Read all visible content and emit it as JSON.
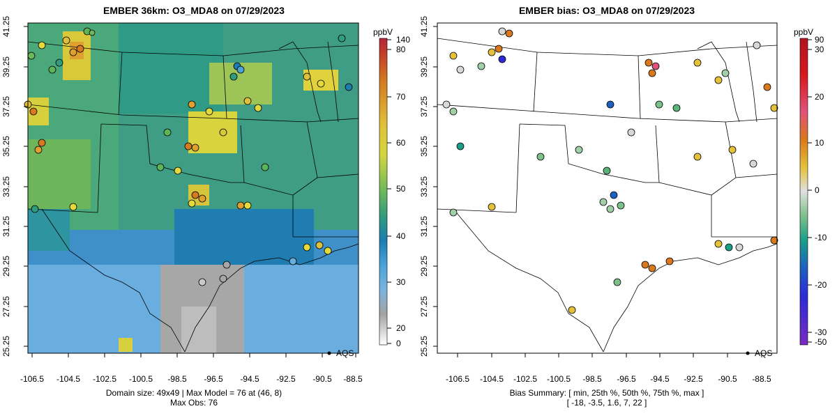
{
  "left_panel": {
    "title": "EMBER 36km: O3_MDA8 on 07/29/2023",
    "x_ticks": [
      "-106.5",
      "-104.5",
      "-102.5",
      "-100.5",
      "-98.5",
      "-96.5",
      "-94.5",
      "-92.5",
      "-90.5",
      "-88.5"
    ],
    "y_ticks": [
      "41.25",
      "39.25",
      "37.25",
      "35.25",
      "33.25",
      "31.25",
      "29.25",
      "27.25",
      "25.25"
    ],
    "legend_label": "AQS",
    "footer": [
      "Domain size: 49x49 | Max Model = 76 at (46, 8)",
      "Max Obs: 76"
    ],
    "colorbar": {
      "unit": "ppbV",
      "labels": [
        "140",
        "80",
        "70",
        "60",
        "50",
        "40",
        "30",
        "20",
        "0"
      ],
      "colors": [
        "#c0392b",
        "#d57a1f",
        "#ddb53a",
        "#e3d93d",
        "#b7cf4a",
        "#5db55a",
        "#2f9c7e",
        "#1b7db0",
        "#4aa3d8",
        "#6aaee0",
        "#a3a3a3",
        "#c9c9c9",
        "#ffffff"
      ]
    }
  },
  "right_panel": {
    "title": "EMBER bias: O3_MDA8 on 07/29/2023",
    "x_ticks": [
      "-106.5",
      "-104.5",
      "-102.5",
      "-100.5",
      "-98.5",
      "-96.5",
      "-94.5",
      "-92.5",
      "-90.5",
      "-88.5"
    ],
    "y_ticks": [
      "41.25",
      "39.25",
      "37.25",
      "35.25",
      "33.25",
      "31.25",
      "29.25",
      "27.25",
      "25.25"
    ],
    "legend_label": "AQS",
    "footer": [
      "Bias Summary: [ min, 25th %, 50th %, 75th %, max ]",
      "[ -18,   -3.5,   1.6,   7,   22 ]"
    ],
    "colorbar": {
      "unit": "ppbV",
      "labels": [
        "90",
        "30",
        "20",
        "10",
        "0",
        "-10",
        "-20",
        "-30",
        "-50"
      ],
      "colors": [
        "#d7191c",
        "#e0527a",
        "#d9791c",
        "#e4c13a",
        "#d8d8d8",
        "#5ab37a",
        "#1a9e8a",
        "#1f5fbf",
        "#2b2bd6",
        "#7a2bc0"
      ]
    }
  }
}
